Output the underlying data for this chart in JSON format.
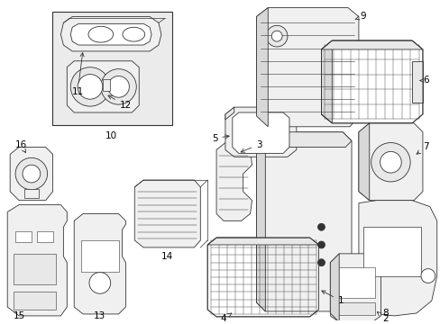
{
  "background_color": "#ffffff",
  "line_color": "#333333",
  "fill_light": "#f0f0f0",
  "fill_mid": "#e8e8e8",
  "fill_dark": "#d8d8d8",
  "inset_fill": "#ebebeb",
  "label_fontsize": 7.5,
  "lw": 0.6
}
